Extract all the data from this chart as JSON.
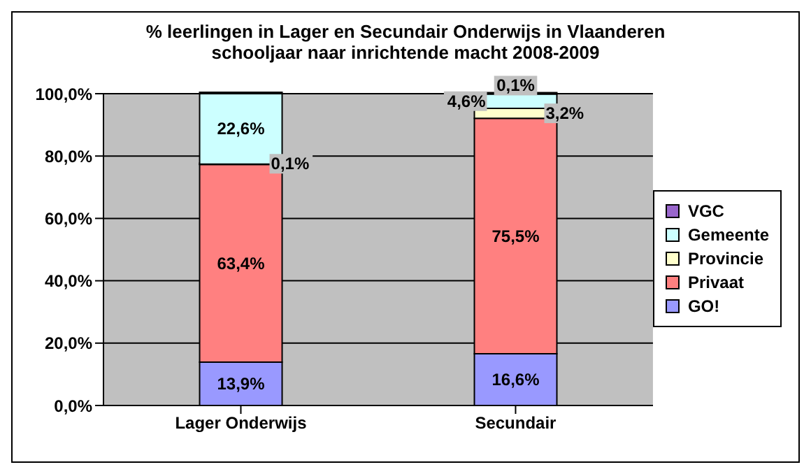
{
  "chart_data": {
    "type": "bar",
    "stacked": true,
    "title": "% leerlingen in Lager en Secundair Onderwijs in Vlaanderen schooljaar naar inrichtende macht 2008-2009",
    "categories": [
      "Lager Onderwijs",
      "Secundair"
    ],
    "series": [
      {
        "name": "GO!",
        "color": "#9999ff",
        "values": [
          13.9,
          16.6
        ],
        "value_labels": [
          "13,9%",
          "16,6%"
        ]
      },
      {
        "name": "Privaat",
        "color": "#ff8080",
        "values": [
          63.4,
          75.5
        ],
        "value_labels": [
          "63,4%",
          "75,5%"
        ]
      },
      {
        "name": "Provincie",
        "color": "#ffffcc",
        "values": [
          0.1,
          3.2
        ],
        "value_labels": [
          "0,1%",
          "3,2%"
        ]
      },
      {
        "name": "Gemeente",
        "color": "#ccffff",
        "values": [
          22.6,
          4.6
        ],
        "value_labels": [
          "22,6%",
          "4,6%"
        ]
      },
      {
        "name": "VGC",
        "color": "#9966cc",
        "values": [
          null,
          0.1
        ],
        "value_labels": [
          null,
          "0,1%"
        ]
      }
    ],
    "ylim": [
      0,
      100
    ],
    "yticks": [
      {
        "value": 0,
        "label": "0,0%"
      },
      {
        "value": 20,
        "label": "20,0%"
      },
      {
        "value": 40,
        "label": "40,0%"
      },
      {
        "value": 60,
        "label": "60,0%"
      },
      {
        "value": 80,
        "label": "80,0%"
      },
      {
        "value": 100,
        "label": "100,0%"
      }
    ],
    "grid": "y",
    "legend": "right"
  }
}
